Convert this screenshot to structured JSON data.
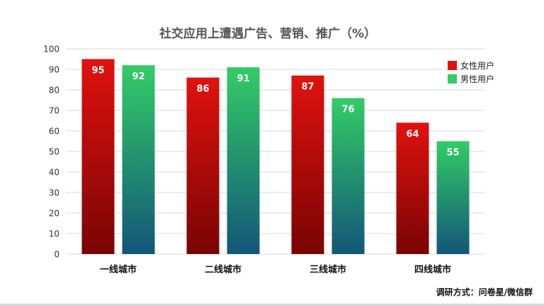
{
  "chart_data": {
    "type": "bar",
    "title": "社交应用上遭遇广告、营销、推广（%）",
    "categories": [
      "一线城市",
      "二线城市",
      "三线城市",
      "四线城市"
    ],
    "series": [
      {
        "name": "女性用户",
        "values": [
          95,
          86,
          87,
          64
        ],
        "color": "#e0120e",
        "color_bottom": "#7a0404"
      },
      {
        "name": "男性用户",
        "values": [
          92,
          91,
          76,
          55
        ],
        "color": "#33cc66",
        "color_bottom": "#135678"
      }
    ],
    "ylim": [
      0,
      100
    ],
    "yticks": [
      0,
      10,
      20,
      30,
      40,
      50,
      60,
      70,
      80,
      90,
      100
    ],
    "grid": true,
    "legend_position": "top-right",
    "xlabel": "",
    "ylabel": ""
  },
  "source_note": "调研方式：问卷星/微信群"
}
